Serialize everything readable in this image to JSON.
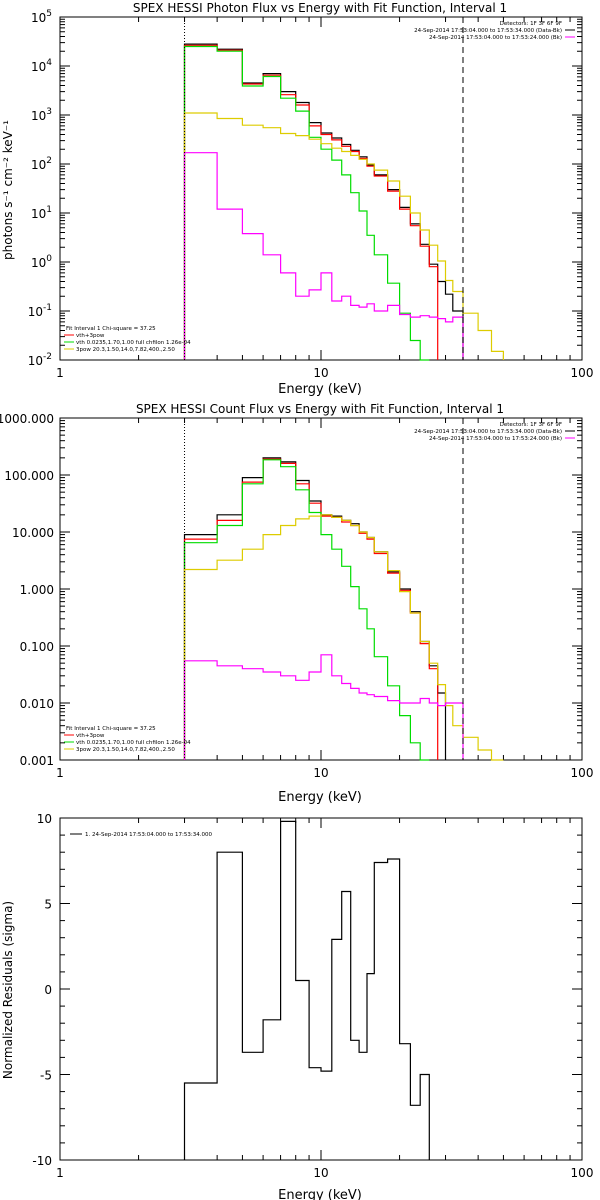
{
  "chart_data": [
    {
      "type": "line",
      "title": "SPEX HESSI Photon Flux vs Energy with Fit Function, Interval 1",
      "xlabel": "Energy (keV)",
      "ylabel": "photons s⁻¹ cm⁻² keV⁻¹",
      "xscale": "log",
      "yscale": "log",
      "xlim": [
        1,
        100
      ],
      "ylim": [
        0.01,
        100000
      ],
      "x_ticks": [
        "1",
        "10",
        "100"
      ],
      "y_ticks": [
        "10-2",
        "10-1",
        "100",
        "101",
        "102",
        "103",
        "104",
        "105"
      ],
      "legend_tr": [
        "Detectors: 1F 3F 6F 9F",
        "24-Sep-2014 17:53:04.000 to 17:53:34.000 (Data-Bk)",
        "24-Sep-2014 17:53:04.000 to 17:53:24.000 (Bk)"
      ],
      "legend_bl": [
        "Fit Interval 1   Chi-square = 37.25",
        "vth+3pow",
        "vth 0.0235,1.70,1.00  full chfilon 1.26e-04",
        "3pow 20.3,1.50,14.0,7.82,400.,2.50"
      ],
      "vlines": [
        {
          "x": 3.0,
          "style": "dotted"
        },
        {
          "x": 35.0,
          "style": "dashed"
        }
      ],
      "edges": [
        3,
        4,
        5,
        6,
        7,
        8,
        9,
        10,
        11,
        12,
        13,
        14,
        15,
        16,
        18,
        20,
        22,
        24,
        26,
        28,
        30,
        32,
        35,
        40,
        45,
        50
      ],
      "series": [
        {
          "name": "24-Sep-2014 17:53:04.000 to 17:53:34.000 (Data-Bk)",
          "color": "#000000",
          "values": [
            28000,
            22000,
            4500,
            7000,
            3000,
            1800,
            700,
            430,
            340,
            250,
            190,
            140,
            95,
            60,
            30,
            13,
            6,
            2.3,
            0.9,
            0.4,
            0.22,
            0.1,
            null,
            null,
            null
          ]
        },
        {
          "name": "vth+3pow",
          "color": "#ff0000",
          "values": [
            26500,
            21000,
            4300,
            6500,
            2600,
            1600,
            600,
            400,
            310,
            230,
            180,
            130,
            90,
            57,
            28,
            12,
            5.5,
            2.1,
            0.8,
            null,
            null,
            null,
            null,
            null,
            null
          ]
        },
        {
          "name": "vth",
          "color": "#00dd00",
          "values": [
            25000,
            20000,
            3900,
            6100,
            2200,
            1200,
            350,
            200,
            120,
            60,
            26,
            11,
            3.5,
            1.4,
            0.37,
            0.09,
            0.025,
            0.01,
            null,
            null,
            null,
            null,
            null,
            null,
            null
          ]
        },
        {
          "name": "3pow",
          "color": "#ddcc00",
          "values": [
            1100,
            850,
            620,
            550,
            420,
            380,
            320,
            260,
            210,
            180,
            150,
            125,
            100,
            75,
            45,
            22,
            10,
            4.5,
            2.2,
            1.05,
            0.42,
            0.25,
            0.09,
            0.04,
            0.015
          ]
        },
        {
          "name": "24-Sep-2014 17:53:04.000 to 17:53:24.000 (Bk)",
          "color": "#ff00ff",
          "values": [
            170,
            12,
            3.8,
            1.4,
            0.6,
            0.2,
            0.27,
            0.6,
            0.16,
            0.2,
            0.13,
            0.12,
            0.14,
            0.1,
            0.13,
            0.085,
            0.075,
            0.08,
            0.075,
            0.07,
            0.06,
            0.075,
            null,
            null,
            null
          ]
        }
      ]
    },
    {
      "type": "line",
      "title": "SPEX HESSI Count Flux vs Energy with Fit Function, Interval 1",
      "xlabel": "Energy (keV)",
      "ylabel": "",
      "xscale": "log",
      "yscale": "log",
      "xlim": [
        1,
        100
      ],
      "ylim": [
        0.001,
        1000
      ],
      "x_ticks": [
        "1",
        "10",
        "100"
      ],
      "y_ticks": [
        "0.001",
        "0.010",
        "0.100",
        "1.000",
        "10.000",
        "100.000",
        "1000.000"
      ],
      "legend_tr": [
        "Detectors: 1F 3F 6F 9F",
        "24-Sep-2014 17:53:04.000 to 17:53:34.000 (Data-Bk)",
        "24-Sep-2014 17:53:04.000 to 17:53:24.000 (Bk)"
      ],
      "legend_bl": [
        "Fit Interval 1   Chi-square = 37.25",
        "vth+3pow",
        "vth 0.0235,1.70,1.00  full chfilon 1.26e-04",
        "3pow 20.3,1.50,14.0,7.82,400.,2.50"
      ],
      "vlines": [
        {
          "x": 3.0,
          "style": "dotted"
        },
        {
          "x": 35.0,
          "style": "dashed"
        }
      ],
      "edges": [
        3,
        4,
        5,
        6,
        7,
        8,
        9,
        10,
        11,
        12,
        13,
        14,
        15,
        16,
        18,
        20,
        22,
        24,
        26,
        28,
        30,
        32,
        35,
        40,
        45,
        50
      ],
      "series": [
        {
          "name": "24-Sep-2014 17:53:04.000 to 17:53:34.000 (Data-Bk)",
          "color": "#000000",
          "values": [
            9,
            20,
            90,
            200,
            170,
            80,
            35,
            20,
            19,
            16,
            14,
            10,
            8,
            4.5,
            2,
            1,
            0.4,
            0.12,
            0.045,
            0.015,
            null,
            null,
            null,
            null,
            null
          ]
        },
        {
          "name": "vth+3pow",
          "color": "#ff0000",
          "values": [
            7.5,
            16,
            75,
            190,
            160,
            70,
            32,
            19,
            18,
            15,
            13,
            9.5,
            7.5,
            4.2,
            1.9,
            0.95,
            0.38,
            0.11,
            0.04,
            null,
            null,
            null,
            null,
            null,
            null
          ]
        },
        {
          "name": "vth",
          "color": "#00dd00",
          "values": [
            6.5,
            13,
            70,
            185,
            140,
            55,
            22,
            9,
            5,
            2.5,
            1.1,
            0.45,
            0.2,
            0.065,
            0.02,
            0.006,
            0.002,
            0.001,
            null,
            null,
            null,
            null,
            null,
            null,
            null
          ]
        },
        {
          "name": "3pow",
          "color": "#ddcc00",
          "values": [
            2.2,
            3.2,
            5,
            9,
            13,
            17,
            19,
            20,
            18,
            16,
            13,
            10,
            8,
            4.5,
            2.1,
            0.9,
            0.38,
            0.12,
            0.05,
            0.021,
            0.009,
            0.004,
            0.0025,
            0.0015,
            0.001
          ]
        },
        {
          "name": "24-Sep-2014 17:53:04.000 to 17:53:24.000 (Bk)",
          "color": "#ff00ff",
          "values": [
            0.055,
            0.045,
            0.04,
            0.035,
            0.03,
            0.025,
            0.035,
            0.07,
            0.03,
            0.022,
            0.018,
            0.015,
            0.014,
            0.013,
            0.011,
            0.01,
            0.01,
            0.012,
            0.01,
            0.009,
            0.01,
            0.01,
            null,
            null,
            null
          ]
        }
      ]
    },
    {
      "type": "line",
      "title": "",
      "xlabel": "Energy (keV)",
      "ylabel": "Normalized Residuals (sigma)",
      "xscale": "log",
      "yscale": "linear",
      "xlim": [
        1,
        100
      ],
      "ylim": [
        -10,
        10
      ],
      "x_ticks": [
        "1",
        "10",
        "100"
      ],
      "y_ticks": [
        "-10",
        "-5",
        "0",
        "5",
        "10"
      ],
      "legend_tr": [],
      "legend_bl": [],
      "legend_tl": [
        "1. 24-Sep-2014 17:53:04.000 to 17:53:34.000"
      ],
      "vlines": [],
      "edges": [
        3,
        4,
        5,
        6,
        7,
        8,
        9,
        10,
        11,
        12,
        13,
        14,
        15,
        16,
        18,
        20,
        22,
        24,
        26,
        28,
        30,
        32,
        35
      ],
      "series": [
        {
          "name": "1. 24-Sep-2014 17:53:04.000 to 17:53:34.000",
          "color": "#000000",
          "values": [
            -5.5,
            8,
            -3.7,
            -1.8,
            9.8,
            0.5,
            -4.6,
            -4.8,
            2.9,
            5.7,
            -3,
            -3.7,
            0.9,
            7.4,
            7.6,
            -3.2,
            -6.8,
            -5,
            null,
            null,
            null,
            null
          ]
        }
      ]
    }
  ]
}
